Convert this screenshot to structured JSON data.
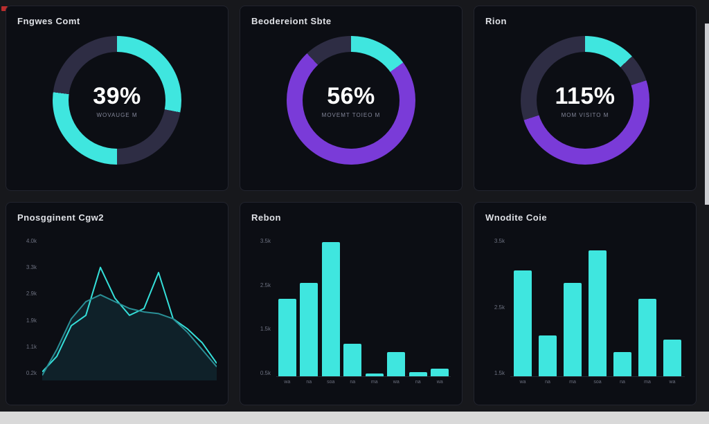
{
  "theme": {
    "page_bg": "#17181c",
    "card_bg": "#0c0e14",
    "accent_cyan": "#3fe6df",
    "accent_purple": "#7a3bd8",
    "ring_dark": "#2e2d44",
    "strip_gray": "#d9d9d9"
  },
  "chart_data": [
    {
      "type": "donut",
      "title": "Fngwes Comt",
      "center_value": "39%",
      "center_sub": "Wovauge m",
      "segments": [
        {
          "color": "#3fe6df",
          "pct": 28
        },
        {
          "color": "#2e2d44",
          "pct": 22
        },
        {
          "color": "#3fe6df",
          "pct": 27
        },
        {
          "color": "#2e2d44",
          "pct": 23
        }
      ]
    },
    {
      "type": "donut",
      "title": "Beodereiont Sbte",
      "center_value": "56%",
      "center_sub": "Movemt toieo m",
      "segments": [
        {
          "color": "#3fe6df",
          "pct": 15
        },
        {
          "color": "#7a3bd8",
          "pct": 73
        },
        {
          "color": "#2e2d44",
          "pct": 12
        }
      ]
    },
    {
      "type": "donut",
      "title": "Rion",
      "center_value": "115%",
      "center_sub": "Mom visito m",
      "segments": [
        {
          "color": "#3fe6df",
          "pct": 13
        },
        {
          "color": "#2e2d44",
          "pct": 7
        },
        {
          "color": "#7a3bd8",
          "pct": 50
        },
        {
          "color": "#2e2d44",
          "pct": 30
        }
      ]
    },
    {
      "type": "line",
      "title": "Pnosgginent Cgw2",
      "ylim": [
        0,
        4200
      ],
      "yticks": [
        "4.0k",
        "3.3k",
        "2.9k",
        "1.9k",
        "1.1k",
        "0.2k"
      ],
      "area_color": "#10232b",
      "series": [
        {
          "name": "primary",
          "color": "#35e0da",
          "values": [
            250,
            700,
            1600,
            1900,
            3300,
            2400,
            1900,
            2100,
            3150,
            1800,
            1500,
            1100,
            500
          ]
        },
        {
          "name": "secondary",
          "color": "#2a8f96",
          "values": [
            150,
            900,
            1800,
            2300,
            2500,
            2300,
            2100,
            2000,
            1950,
            1800,
            1400,
            900,
            400
          ]
        }
      ]
    },
    {
      "type": "bar",
      "title": "Rebon",
      "ylim": [
        0,
        3500
      ],
      "yticks": [
        "3.5k",
        "2.5k",
        "1.5k",
        "0.5k"
      ],
      "categories": [
        "wa",
        "na",
        "soa",
        "na",
        "ma",
        "wa",
        "na",
        "wa"
      ],
      "values": [
        1900,
        2300,
        3300,
        800,
        60,
        600,
        100,
        180
      ],
      "bar_color": "#3fe6df"
    },
    {
      "type": "bar",
      "title": "Wnodite Coie",
      "ylim": [
        0,
        3500
      ],
      "yticks": [
        "3.5k",
        "2.5k",
        "1.5k"
      ],
      "categories": [
        "wa",
        "na",
        "ma",
        "soa",
        "na",
        "ma",
        "wa"
      ],
      "values": [
        2600,
        1000,
        2300,
        3100,
        600,
        1900,
        900
      ],
      "bar_color": "#3fe6df"
    }
  ]
}
